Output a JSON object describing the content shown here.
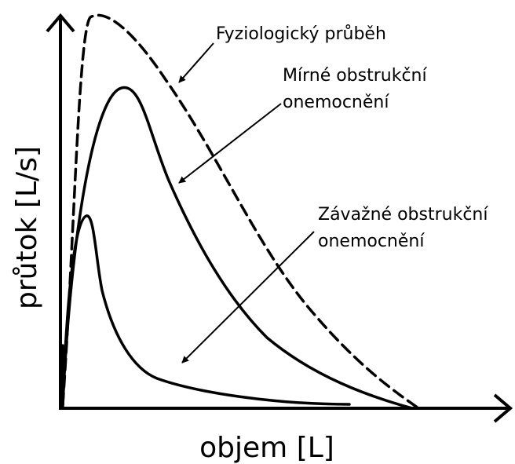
{
  "annotations": [
    {
      "lines": [
        "Fyziologický průběh"
      ]
    },
    {
      "lines": [
        "Mírné obstrukční",
        "onemocnění"
      ]
    },
    {
      "lines": [
        "Závažné obstrukční",
        "onemocnění"
      ]
    }
  ],
  "axes": {
    "y_label": "průtok [L/s]",
    "x_label": "objem [L]"
  }
}
